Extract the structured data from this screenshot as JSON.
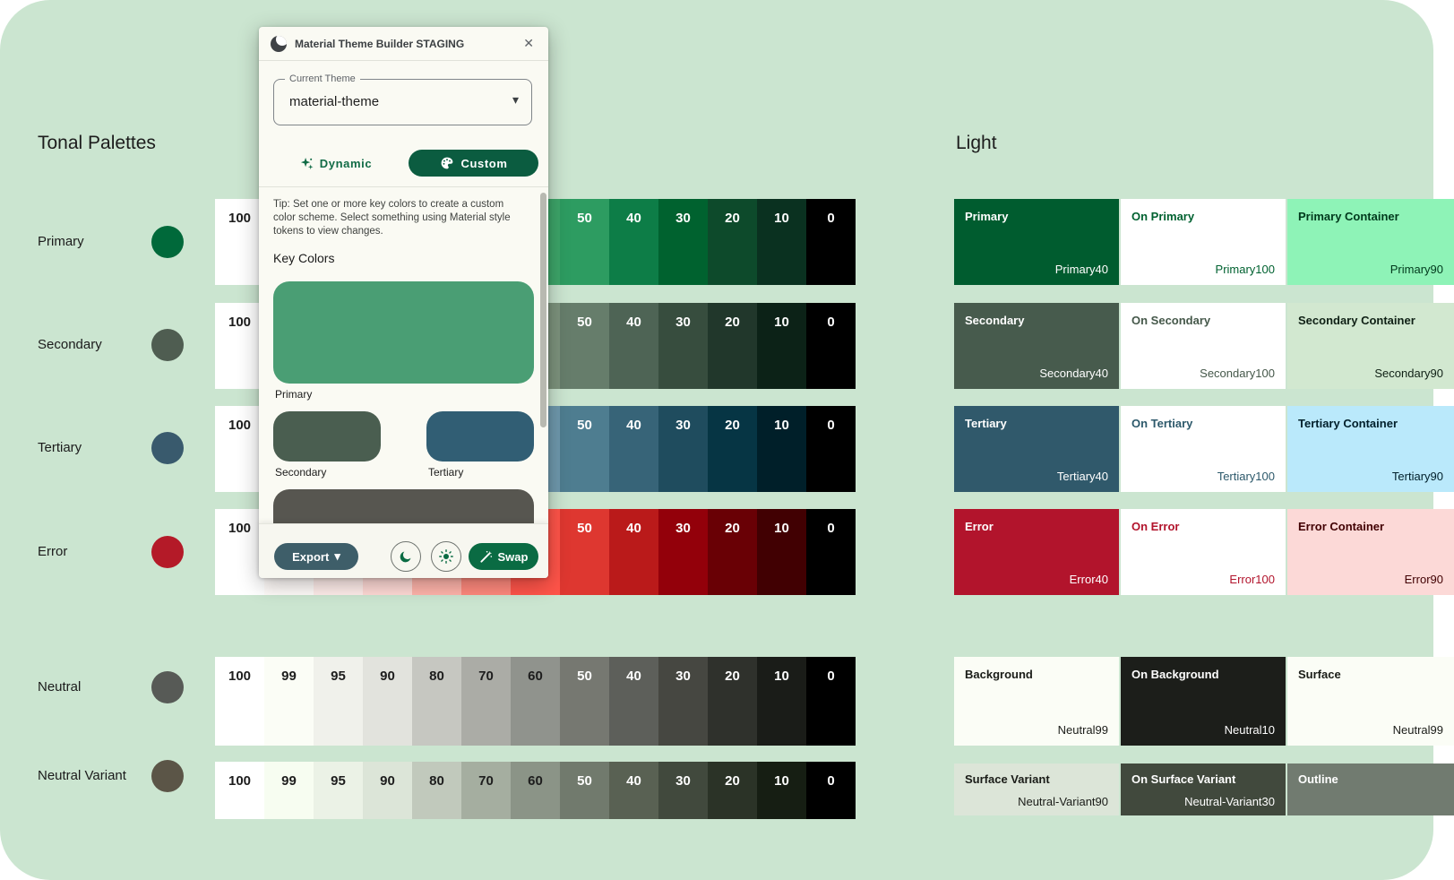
{
  "plugin": {
    "title": "Material Theme Builder STAGING",
    "close_label": "✕",
    "theme": {
      "label": "Current Theme",
      "value": "material-theme"
    },
    "actions": {
      "dynamic": "Dynamic",
      "custom": "Custom"
    },
    "tip": "Tip: Set one or more key colors to create a custom color scheme. Select something using Material style tokens to view changes.",
    "key_colors_heading": "Key Colors",
    "key_colors": [
      {
        "label": "Primary",
        "color": "#4a9e74",
        "size": "large"
      },
      {
        "label": "Secondary",
        "color": "#4a5e50",
        "size": "half"
      },
      {
        "label": "Tertiary",
        "color": "#315e74",
        "size": "half"
      },
      {
        "label": "",
        "color": "#575650",
        "size": "partial"
      }
    ],
    "footer": {
      "export": "Export",
      "swap": "Swap"
    }
  },
  "tonal": {
    "heading": "Tonal Palettes",
    "tones": [
      "100",
      "99",
      "95",
      "90",
      "80",
      "70",
      "60",
      "50",
      "40",
      "30",
      "20",
      "10",
      "0"
    ],
    "rows": [
      {
        "label": "Primary",
        "dot": "#00693a",
        "colors": [
          "#ffffff",
          "#f5fff3",
          "#c9ffd6",
          "#95f9b9",
          "#79dc9e",
          "#5ec084",
          "#3da569",
          "#2d9c61",
          "#0d7d47",
          "#00622f",
          "#0d4a2b",
          "#0a3120",
          "#000000"
        ]
      },
      {
        "label": "Secondary",
        "dot": "#4f5d51",
        "colors": [
          "#ffffff",
          "#f6fff2",
          "#e4f2e0",
          "#cfe4cd",
          "#b3c8b2",
          "#98ad97",
          "#7d937d",
          "#667d6b",
          "#4e6455",
          "#374d3e",
          "#21372b",
          "#0c2217",
          "#000000"
        ]
      },
      {
        "label": "Tertiary",
        "dot": "#395a6d",
        "colors": [
          "#ffffff",
          "#f2fbff",
          "#dcf3ff",
          "#c0e9fb",
          "#a5cde2",
          "#89b2c6",
          "#6f99ad",
          "#4e7d90",
          "#376478",
          "#1f4c5e",
          "#063544",
          "#001f29",
          "#000000"
        ]
      },
      {
        "label": "Error",
        "dot": "#b41a28",
        "colors": [
          "#ffffff",
          "#fffbf9",
          "#ffedea",
          "#ffdad6",
          "#ffb4ab",
          "#ff897d",
          "#ff5449",
          "#de3730",
          "#ba1a1a",
          "#93000a",
          "#690005",
          "#410002",
          "#000000"
        ]
      },
      {
        "label": "Neutral",
        "dot": "#575a56",
        "colors": [
          "#ffffff",
          "#fbfdf6",
          "#f0f1eb",
          "#e2e3dd",
          "#c6c7c1",
          "#abaca6",
          "#90938d",
          "#767871",
          "#5d5f5a",
          "#464741",
          "#2f312c",
          "#1a1c18",
          "#000000"
        ]
      },
      {
        "label": "Neutral Variant",
        "dot": "#5b5547",
        "colors": [
          "#ffffff",
          "#f7fdf1",
          "#ebf2e6",
          "#dce5d8",
          "#c1c9bc",
          "#a5aea0",
          "#8b9487",
          "#717a6d",
          "#596153",
          "#41493d",
          "#2b3327",
          "#161e13",
          "#000000"
        ]
      }
    ]
  },
  "scheme": {
    "heading": "Light",
    "rows": [
      [
        {
          "name": "Primary",
          "token": "Primary40",
          "bg": "#005c2f",
          "fg": "#ffffff"
        },
        {
          "name": "On Primary",
          "token": "Primary100",
          "bg": "#ffffff",
          "fg": "#006130"
        },
        {
          "name": "Primary Container",
          "token": "Primary90",
          "bg": "#8ef3b7",
          "fg": "#00391c"
        }
      ],
      [
        {
          "name": "Secondary",
          "token": "Secondary40",
          "bg": "#475b4d",
          "fg": "#ffffff"
        },
        {
          "name": "On Secondary",
          "token": "Secondary100",
          "bg": "#ffffff",
          "fg": "#45584a"
        },
        {
          "name": "Secondary Container",
          "token": "Secondary90",
          "bg": "#d2e8d0",
          "fg": "#0f2015"
        }
      ],
      [
        {
          "name": "Tertiary",
          "token": "Tertiary40",
          "bg": "#30596b",
          "fg": "#ffffff"
        },
        {
          "name": "On Tertiary",
          "token": "Tertiary100",
          "bg": "#ffffff",
          "fg": "#2d596b"
        },
        {
          "name": "Tertiary Container",
          "token": "Tertiary90",
          "bg": "#bae9fb",
          "fg": "#001f2a"
        }
      ],
      [
        {
          "name": "Error",
          "token": "Error40",
          "bg": "#b2142c",
          "fg": "#ffffff"
        },
        {
          "name": "On Error",
          "token": "Error100",
          "bg": "#ffffff",
          "fg": "#b2142c"
        },
        {
          "name": "Error Container",
          "token": "Error90",
          "bg": "#fcd9d7",
          "fg": "#410002"
        }
      ],
      [
        {
          "name": "Background",
          "token": "Neutral99",
          "bg": "#fbfdf6",
          "fg": "#1a1c18"
        },
        {
          "name": "On Background",
          "token": "Neutral10",
          "bg": "#1c1e1a",
          "fg": "#ffffff"
        },
        {
          "name": "Surface",
          "token": "Neutral99",
          "bg": "#fbfdf6",
          "fg": "#1a1c18"
        }
      ],
      [
        {
          "name": "Surface Variant",
          "token": "Neutral-Variant90",
          "bg": "#dce5d8",
          "fg": "#1a1c18"
        },
        {
          "name": "On Surface Variant",
          "token": "Neutral-Variant30",
          "bg": "#41493d",
          "fg": "#ffffff"
        },
        {
          "name": "Outline",
          "token": "",
          "bg": "#717b70",
          "fg": "#ffffff"
        }
      ]
    ]
  }
}
